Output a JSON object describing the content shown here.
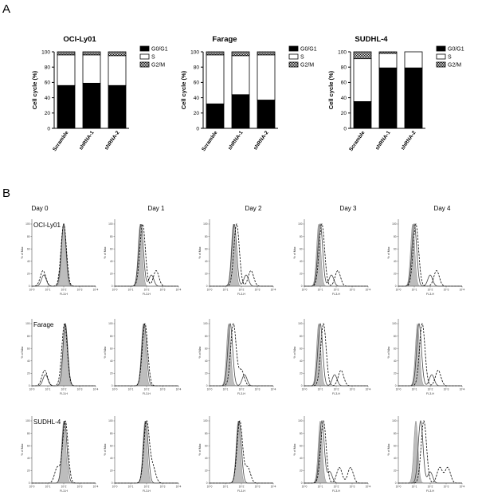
{
  "panel_a_label": "A",
  "panel_b_label": "B",
  "legend": {
    "entries": [
      "G0/G1",
      "S",
      "G2/M"
    ]
  },
  "colors": {
    "g0g1": "#000000",
    "s": "#ffffff",
    "g2m": "#9a9a9a",
    "filled_hist": "#bdbdbd"
  },
  "chart_data": [
    {
      "type": "bar",
      "stacked": true,
      "title": "OCI-Ly01",
      "ylabel": "Cell cycle (%)",
      "ylim": [
        0,
        100
      ],
      "yticks": [
        0,
        20,
        40,
        60,
        80,
        100
      ],
      "categories": [
        "Scramble",
        "shRNA-1",
        "shRNA-2"
      ],
      "series": [
        {
          "name": "G0/G1",
          "values": [
            56,
            59,
            56
          ]
        },
        {
          "name": "S",
          "values": [
            40,
            37,
            39
          ]
        },
        {
          "name": "G2/M",
          "values": [
            4,
            4,
            5
          ]
        }
      ]
    },
    {
      "type": "bar",
      "stacked": true,
      "title": "Farage",
      "ylabel": "Cell cycle (%)",
      "ylim": [
        0,
        100
      ],
      "yticks": [
        0,
        20,
        40,
        60,
        80,
        100
      ],
      "categories": [
        "Scramble",
        "shRNA-1",
        "shRNA-2"
      ],
      "series": [
        {
          "name": "G0/G1",
          "values": [
            32,
            44,
            37
          ]
        },
        {
          "name": "S",
          "values": [
            64,
            51,
            59
          ]
        },
        {
          "name": "G2/M",
          "values": [
            4,
            5,
            4
          ]
        }
      ]
    },
    {
      "type": "bar",
      "stacked": true,
      "title": "SUDHL-4",
      "ylabel": "Cell cycle (%)",
      "ylim": [
        0,
        100
      ],
      "yticks": [
        0,
        20,
        40,
        60,
        80,
        100
      ],
      "categories": [
        "Scramble",
        "shRNA-1",
        "shRNA-2"
      ],
      "series": [
        {
          "name": "G0/G1",
          "values": [
            35,
            79,
            79
          ]
        },
        {
          "name": "S",
          "values": [
            56,
            19,
            21
          ]
        },
        {
          "name": "G2/M",
          "values": [
            9,
            2,
            0
          ]
        }
      ]
    },
    {
      "type": "histogram-grid",
      "days": [
        "Day 0",
        "Day 1",
        "Day 2",
        "Day 3",
        "Day 4"
      ],
      "cell_lines": [
        "OCI-Ly01",
        "Farage",
        "SUDHL-4"
      ],
      "xlabel": "FL3-H",
      "ylabel": "% of Max",
      "yticks": [
        0,
        20,
        40,
        60,
        80,
        100
      ],
      "xticks": [
        "10^0",
        "10^1",
        "10^2",
        "10^3",
        "10^4"
      ],
      "xrange_log": [
        0,
        4
      ],
      "peaks": {
        "OCI-Ly01": [
          {
            "filled": [
              2.0
            ],
            "solid": [
              2.0,
              0.75
            ],
            "dashed": [
              2.0,
              0.7
            ]
          },
          {
            "filled": [
              1.6
            ],
            "solid": [
              1.65,
              2.3
            ],
            "dashed": [
              1.75,
              2.6
            ]
          },
          {
            "filled": [
              1.5
            ],
            "solid": [
              1.55,
              2.3
            ],
            "dashed": [
              1.7,
              2.6
            ]
          },
          {
            "filled": [
              0.9
            ],
            "solid": [
              1.0,
              1.7
            ],
            "dashed": [
              1.1,
              2.1
            ]
          },
          {
            "filled": [
              0.9
            ],
            "solid": [
              1.0,
              2.0
            ],
            "dashed": [
              1.1,
              2.4
            ]
          }
        ],
        "Farage": [
          {
            "filled": [
              2.1
            ],
            "solid": [
              2.1,
              0.85
            ],
            "dashed": [
              2.05,
              0.8
            ]
          },
          {
            "filled": [
              1.8
            ],
            "solid": [
              1.85
            ],
            "dashed": [
              1.9
            ]
          },
          {
            "filled": [
              1.2
            ],
            "solid": [
              1.3,
              2.2
            ],
            "dashed": [
              1.5,
              2.0
            ]
          },
          {
            "filled": [
              0.9
            ],
            "solid": [
              1.0,
              1.9
            ],
            "dashed": [
              1.2,
              2.3
            ]
          },
          {
            "filled": [
              1.2
            ],
            "solid": [
              1.3,
              2.1
            ],
            "dashed": [
              1.5,
              2.5
            ]
          }
        ],
        "SUDHL-4": [
          {
            "filled": [
              2.0
            ],
            "solid": [
              2.05
            ],
            "dashed": [
              2.1,
              1.6
            ]
          },
          {
            "filled": [
              1.9
            ],
            "solid": [
              1.95
            ],
            "dashed": [
              2.0,
              2.4
            ]
          },
          {
            "filled": [
              1.8
            ],
            "solid": [
              1.85
            ],
            "dashed": [
              1.9,
              2.4
            ]
          },
          {
            "filled": [
              1.0
            ],
            "solid": [
              1.1,
              1.6
            ],
            "dashed": [
              1.2,
              2.2,
              2.9
            ]
          },
          {
            "filled": [
              1.1
            ],
            "solid": [
              1.4,
              2.0
            ],
            "dashed": [
              1.6,
              2.6,
              3.1
            ]
          }
        ]
      }
    }
  ]
}
